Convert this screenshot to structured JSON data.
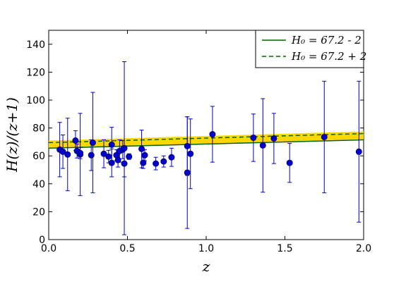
{
  "chart_data": {
    "type": "scatter",
    "xlabel": "z",
    "ylabel": "H(z)/(z+1)",
    "xlim": [
      0.0,
      2.0
    ],
    "ylim": [
      0,
      150
    ],
    "x_ticks": [
      0.0,
      0.5,
      1.0,
      1.5,
      2.0
    ],
    "x_tick_labels": [
      "0.0",
      "0.5",
      "1.0",
      "1.5",
      "2.0"
    ],
    "y_ticks": [
      0,
      20,
      40,
      60,
      80,
      100,
      120,
      140
    ],
    "y_tick_labels": [
      "0",
      "20",
      "40",
      "60",
      "80",
      "100",
      "120",
      "140"
    ],
    "grid": false,
    "legend_position": "top-right",
    "colors": {
      "points": "#0000cc",
      "errorbars": "#0000cc",
      "band_fill": "#ffd700",
      "lines": "#006400"
    },
    "band": {
      "x": [
        0.0,
        2.0
      ],
      "lower": [
        65.5,
        72.0
      ],
      "upper": [
        71.0,
        77.5
      ]
    },
    "series": [
      {
        "name": "H_0 = 67.2 - 2",
        "legend_label": "H₀ = 67.2 - 2",
        "style": "solid",
        "x": [
          0.0,
          2.0
        ],
        "y": [
          65.5,
          71.5
        ]
      },
      {
        "name": "H_0 = 67.2 + 2",
        "legend_label": "H₀ = 67.2 + 2",
        "style": "dashed",
        "x": [
          0.0,
          2.0
        ],
        "y": [
          69.5,
          76.0
        ]
      },
      {
        "name": "data",
        "style": "markers",
        "points": [
          {
            "x": 0.07,
            "y": 64.5,
            "err": 19.5
          },
          {
            "x": 0.09,
            "y": 63.0,
            "err": 12.0
          },
          {
            "x": 0.12,
            "y": 61.0,
            "err": 26.0
          },
          {
            "x": 0.17,
            "y": 71.0,
            "err": 7.0
          },
          {
            "x": 0.18,
            "y": 63.5,
            "err": 5.0
          },
          {
            "x": 0.2,
            "y": 61.0,
            "err": 29.5
          },
          {
            "x": 0.2,
            "y": 62.0,
            "err": 4.0
          },
          {
            "x": 0.27,
            "y": 60.5,
            "err": 11.0
          },
          {
            "x": 0.28,
            "y": 69.5,
            "err": 36.0
          },
          {
            "x": 0.35,
            "y": 61.5,
            "err": 10.0
          },
          {
            "x": 0.38,
            "y": 59.5,
            "err": 4.5
          },
          {
            "x": 0.4,
            "y": 68.0,
            "err": 12.5
          },
          {
            "x": 0.4,
            "y": 55.0,
            "err": 10.0
          },
          {
            "x": 0.43,
            "y": 60.5,
            "err": 4.0
          },
          {
            "x": 0.44,
            "y": 57.0,
            "err": 5.0
          },
          {
            "x": 0.45,
            "y": 63.5,
            "err": 8.0
          },
          {
            "x": 0.47,
            "y": 64.5,
            "err": 6.5
          },
          {
            "x": 0.48,
            "y": 54.5,
            "err": 9.5
          },
          {
            "x": 0.48,
            "y": 65.5,
            "err": 62.0
          },
          {
            "x": 0.51,
            "y": 59.5,
            "err": 2.0
          },
          {
            "x": 0.59,
            "y": 65.0,
            "err": 13.5
          },
          {
            "x": 0.6,
            "y": 55.0,
            "err": 4.0
          },
          {
            "x": 0.61,
            "y": 60.5,
            "err": 4.0
          },
          {
            "x": 0.68,
            "y": 54.5,
            "err": 4.5
          },
          {
            "x": 0.73,
            "y": 56.0,
            "err": 4.0
          },
          {
            "x": 0.78,
            "y": 59.0,
            "err": 6.5
          },
          {
            "x": 0.88,
            "y": 67.0,
            "err": 21.0
          },
          {
            "x": 0.88,
            "y": 48.0,
            "err": 40.0
          },
          {
            "x": 0.9,
            "y": 61.5,
            "err": 25.0
          },
          {
            "x": 1.04,
            "y": 75.5,
            "err": 20.0
          },
          {
            "x": 1.3,
            "y": 73.0,
            "err": 17.0
          },
          {
            "x": 1.36,
            "y": 67.5,
            "err": 33.5
          },
          {
            "x": 1.43,
            "y": 72.5,
            "err": 18.0
          },
          {
            "x": 1.53,
            "y": 55.0,
            "err": 14.0
          },
          {
            "x": 1.75,
            "y": 73.5,
            "err": 40.0
          },
          {
            "x": 1.97,
            "y": 63.0,
            "err": 50.5
          }
        ]
      }
    ]
  }
}
